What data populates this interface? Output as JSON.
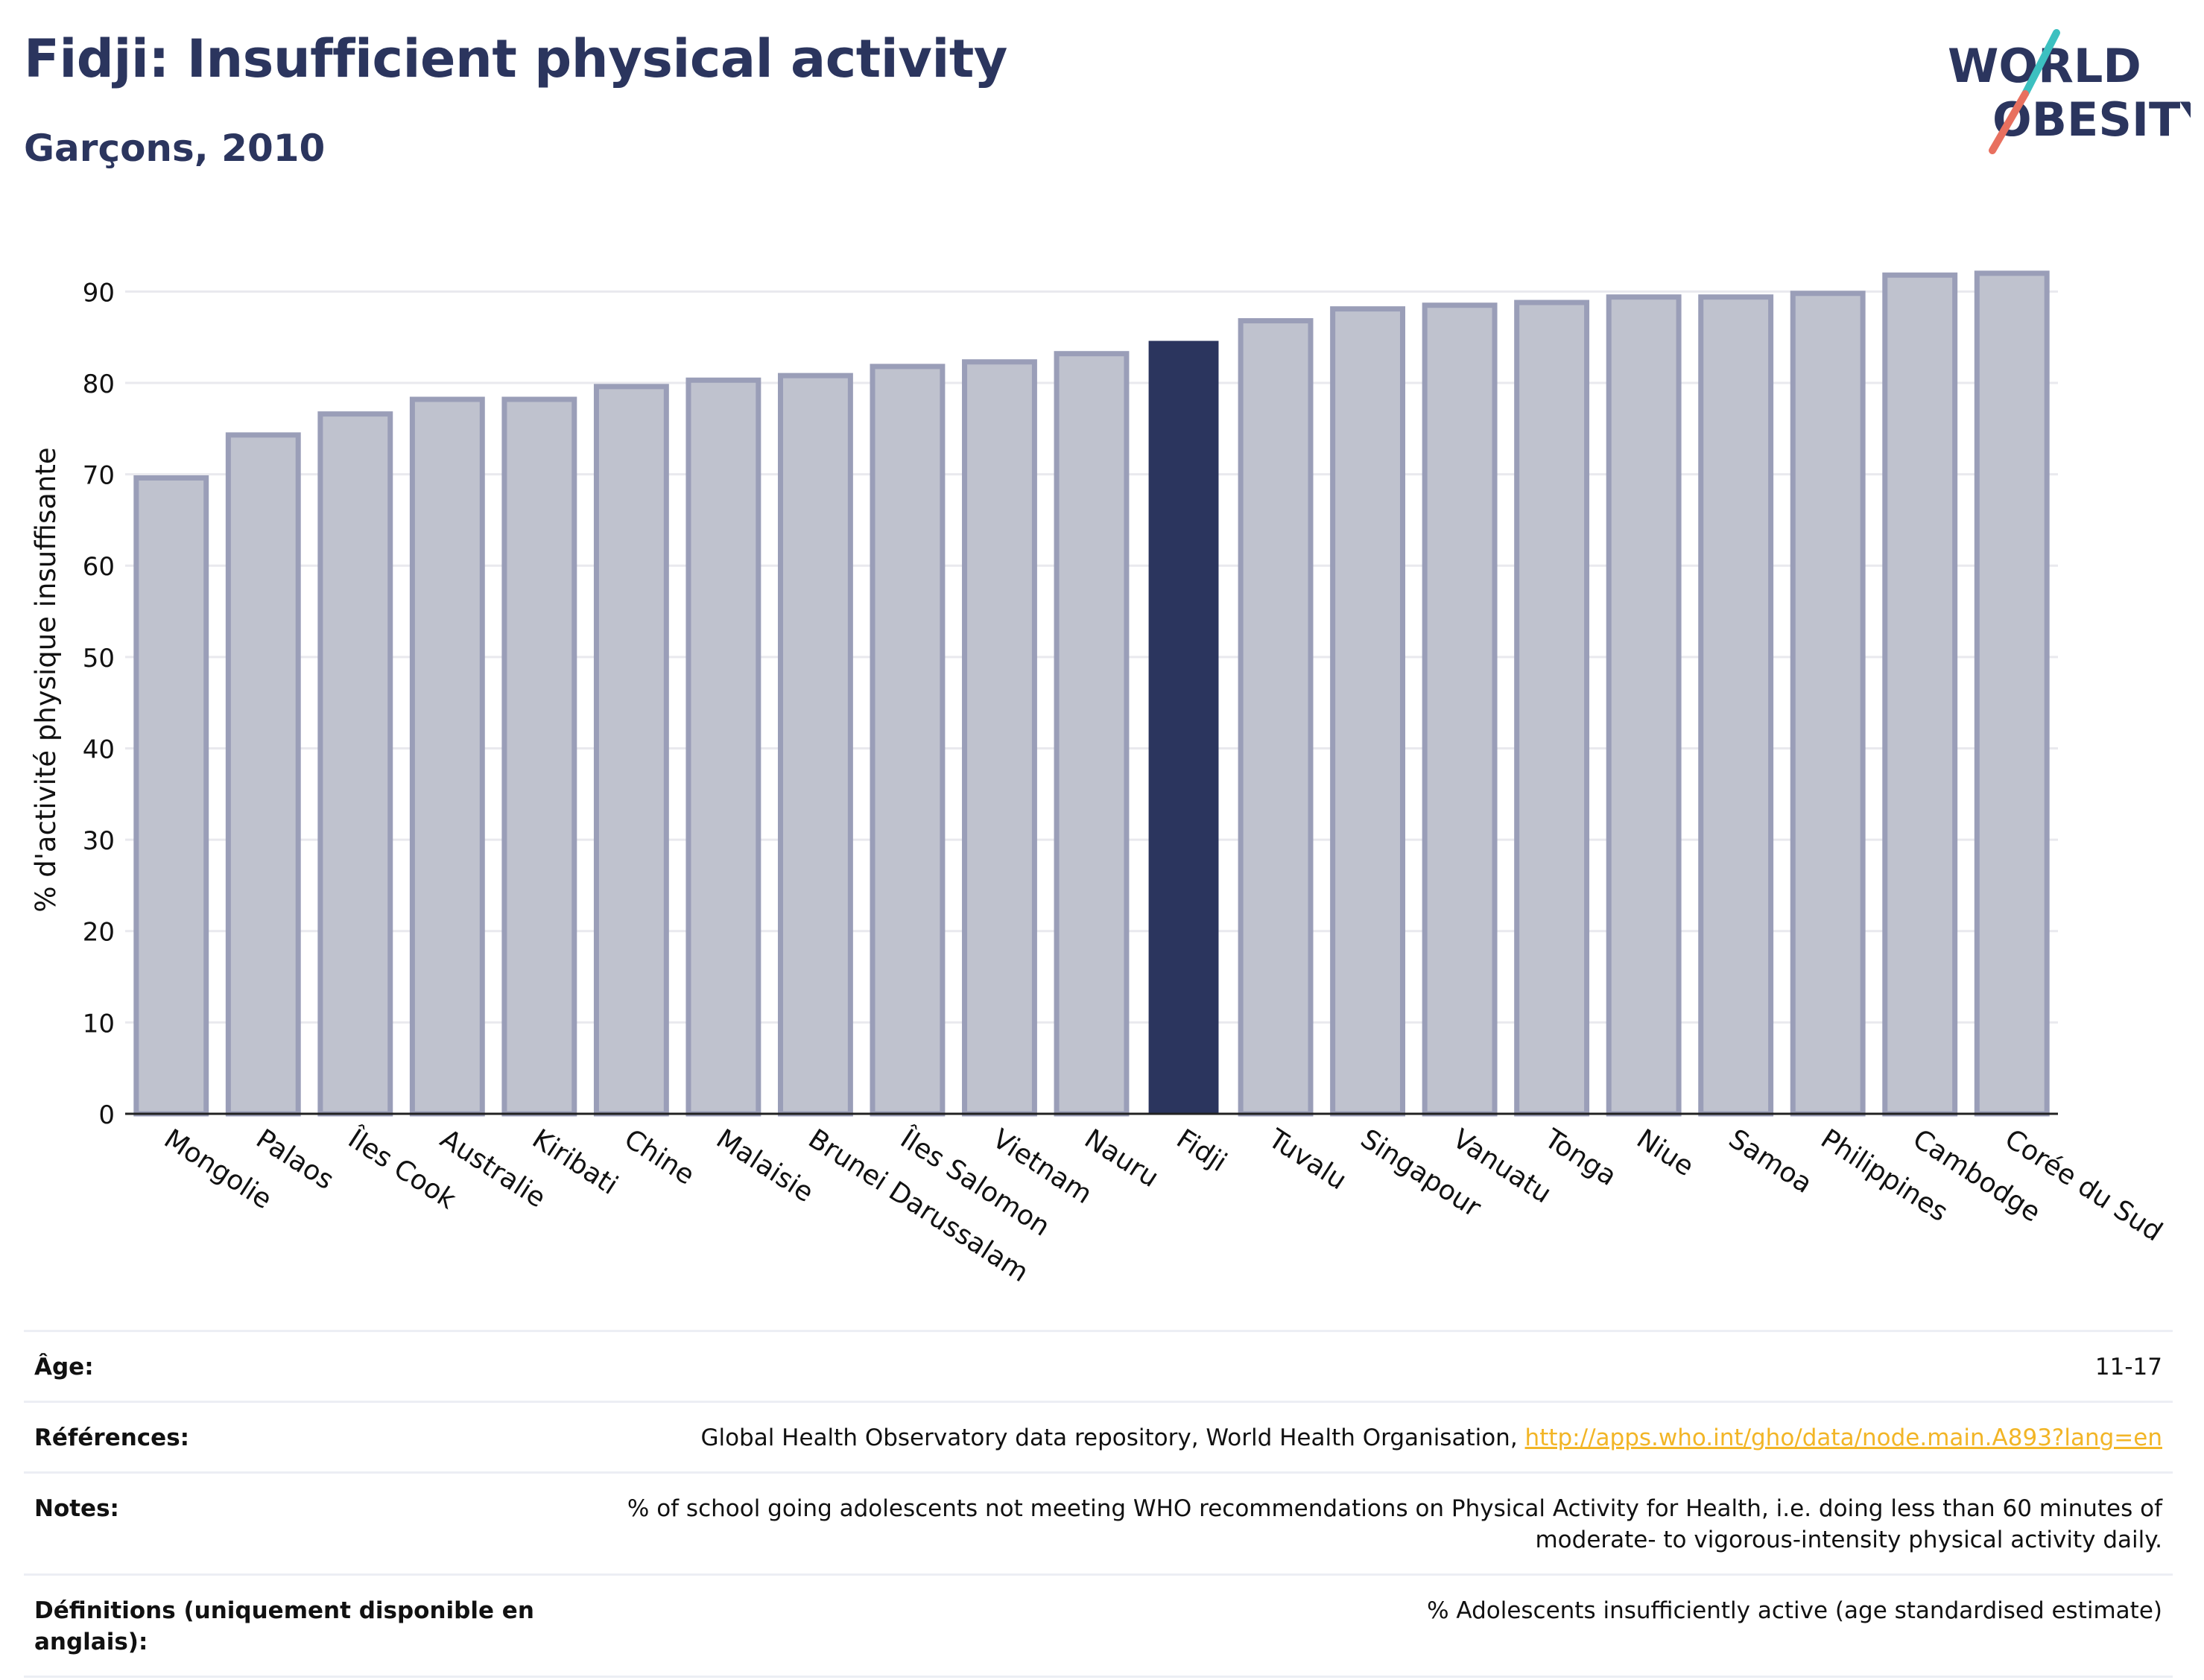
{
  "header": {
    "title": "Fidji: Insufficient physical activity",
    "subtitle": "Garçons, 2010"
  },
  "logo": {
    "line1": "WORLD",
    "line2": "OBESITY",
    "colors": {
      "text": "#2b355e",
      "slash_teal": "#3cc0c0",
      "slash_coral": "#e8705f"
    }
  },
  "colors": {
    "bar": "#bfc2ce",
    "bar_border": "#9a9eb8",
    "highlight": "#2b355e",
    "grid": "#e9e9ee",
    "axis": "#222222",
    "text": "#111111",
    "link": "#f2b526"
  },
  "chart_data": {
    "type": "bar",
    "ylabel": "% d'activité physique insuffisante",
    "xlabel": "",
    "ylim": [
      0,
      95
    ],
    "yticks": [
      0,
      10,
      20,
      30,
      40,
      50,
      60,
      70,
      80,
      90
    ],
    "grid": true,
    "highlight": "Fidji",
    "categories": [
      "Mongolie",
      "Palaos",
      "Îles Cook",
      "Australie",
      "Kiribati",
      "Chine",
      "Malaisie",
      "Brunei Darussalam",
      "Îles Salomon",
      "Vietnam",
      "Nauru",
      "Fidji",
      "Tuvalu",
      "Singapour",
      "Vanuatu",
      "Tonga",
      "Niue",
      "Samoa",
      "Philippines",
      "Cambodge",
      "Corée du Sud"
    ],
    "values": [
      69.6,
      74.3,
      76.6,
      78.2,
      78.2,
      79.6,
      80.3,
      80.8,
      81.8,
      82.3,
      83.2,
      84.6,
      86.8,
      88.1,
      88.5,
      88.8,
      89.4,
      89.4,
      89.8,
      91.8,
      92.0
    ]
  },
  "meta": {
    "age_label": "Âge:",
    "age_value": "11-17",
    "refs_label": "Références:",
    "refs_text": "Global Health Observatory data repository, World Health Organisation,",
    "refs_link": "http://apps.who.int/gho/data/node.main.A893?lang=en",
    "notes_label": "Notes:",
    "notes_value": "% of school going adolescents not meeting WHO recommendations on Physical Activity for Health, i.e. doing less than 60 minutes of moderate- to vigorous-intensity physical activity daily.",
    "defs_label": "Définitions (uniquement disponible en anglais):",
    "defs_value": "% Adolescents insufficiently active (age standardised estimate)"
  }
}
